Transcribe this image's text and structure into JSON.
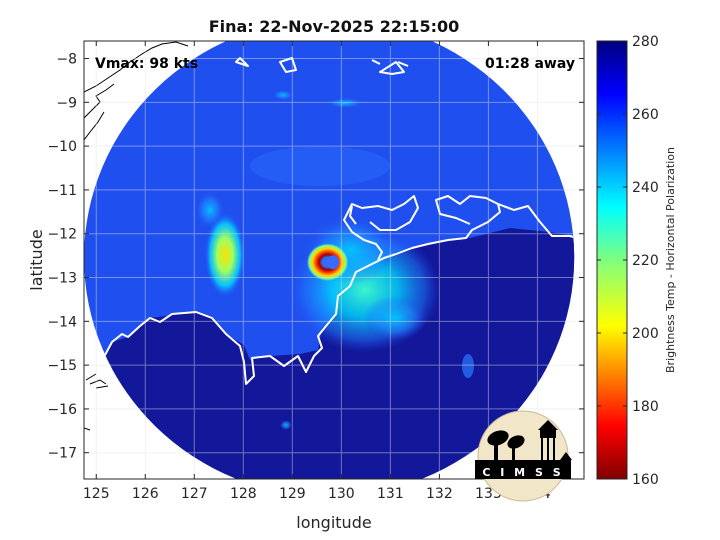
{
  "title": "Fina: 22-Nov-2025 22:15:00",
  "annotations": {
    "vmax": "Vmax: 98 kts",
    "away": "01:28 away"
  },
  "logo": {
    "text": "C I M S S"
  },
  "chart_data": {
    "type": "heatmap",
    "title": "Fina: 22-Nov-2025 22:15:00",
    "xlabel": "longitude",
    "ylabel": "latitude",
    "xlim": [
      124.75,
      134.95
    ],
    "ylim": [
      -17.6,
      -7.6
    ],
    "xticks": [
      125,
      126,
      127,
      128,
      129,
      130,
      131,
      132,
      133,
      134
    ],
    "yticks": [
      -8,
      -9,
      -10,
      -11,
      -12,
      -13,
      -14,
      -15,
      -16,
      -17
    ],
    "grid": true,
    "colorbar": {
      "label": "Brightness Temp - Horizontal Polarization",
      "range": [
        160,
        280
      ],
      "ticks": [
        160,
        180,
        200,
        220,
        240,
        260,
        280
      ],
      "colormap": "jet",
      "placement": "right"
    },
    "storm_center": {
      "lon": 129.75,
      "lat": -12.65,
      "min_temp": 165
    },
    "background_temp": 268,
    "swath": {
      "center_lon": 129.75,
      "center_lat": -12.55,
      "radius_deg": 5.0
    }
  },
  "colors": {
    "background": "#ffffff",
    "coastline_land": "#ffffff",
    "coastline_outside": "#000000",
    "grid": "#d9d9d9",
    "logo_disc": "#f2e6c8"
  }
}
